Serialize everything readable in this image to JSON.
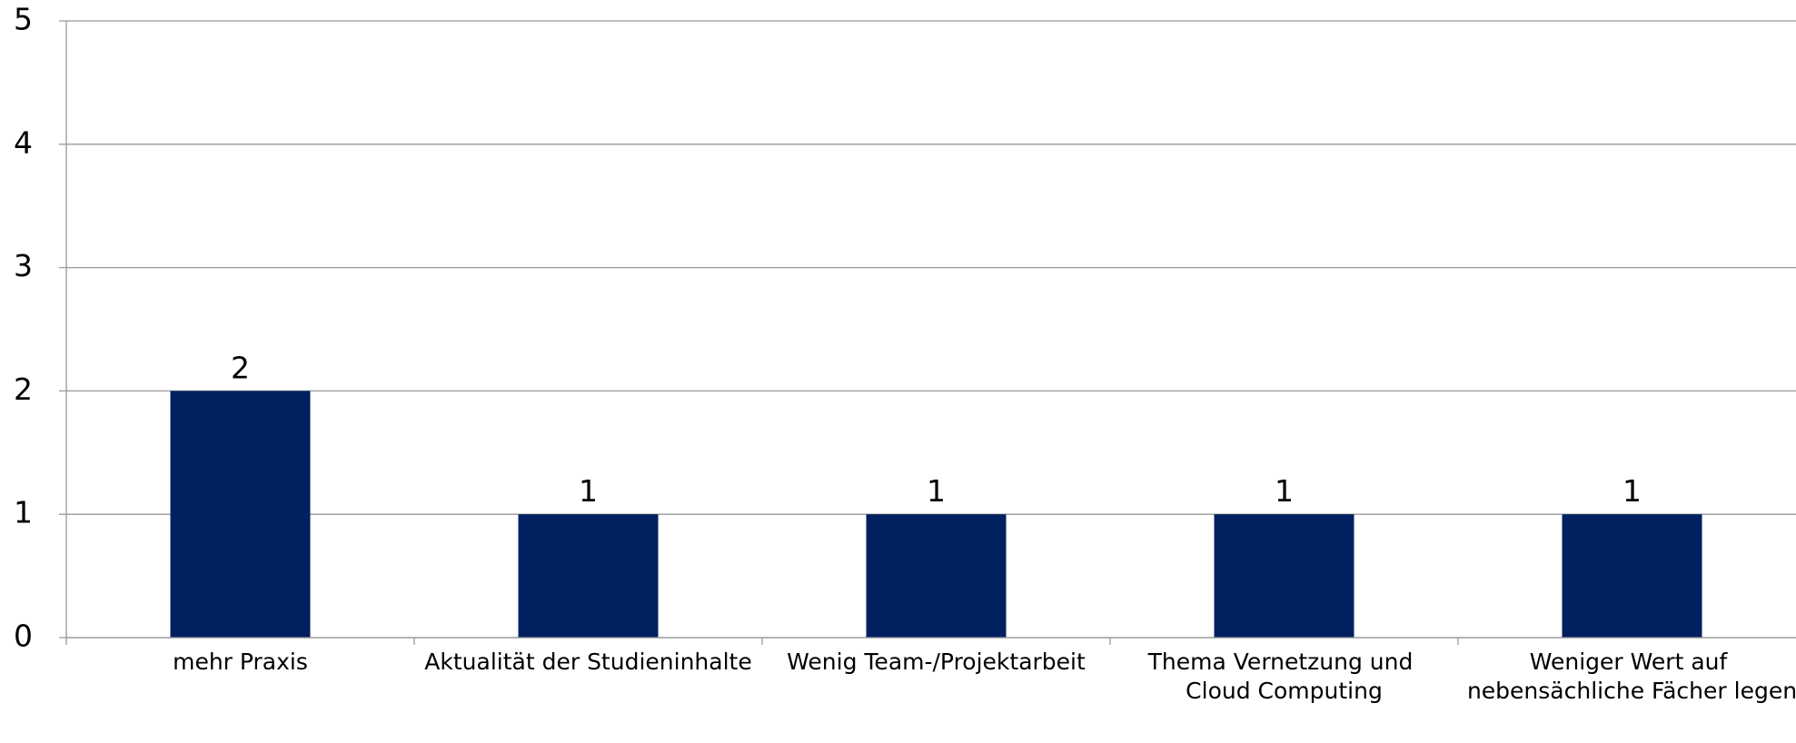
{
  "chart_data": {
    "type": "bar",
    "categories": [
      "mehr Praxis",
      "Aktualität der Studieninhalte",
      "Wenig Team-/Projektarbeit",
      "Thema Vernetzung und Cloud Computing",
      "Weniger Wert auf nebensächliche Fächer legen"
    ],
    "values": [
      2,
      1,
      1,
      1,
      1
    ],
    "color": "#002060",
    "ylim": [
      0,
      5
    ],
    "yticks": [
      0,
      1,
      2,
      3,
      4,
      5
    ],
    "grid": true
  }
}
